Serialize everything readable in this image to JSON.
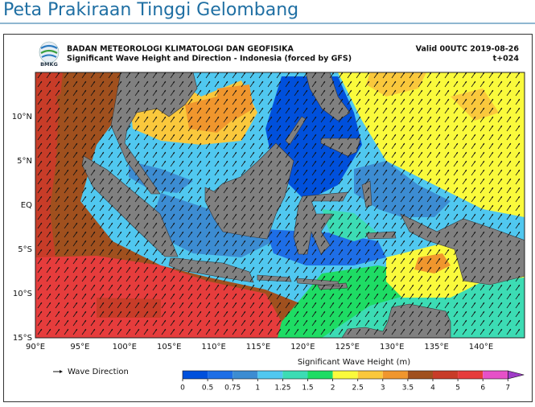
{
  "header": {
    "title": "Peta Prakiraan Tinggi Gelombang"
  },
  "map": {
    "logo_text": "BMKG",
    "agency": "BADAN METEOROLOGI KLIMATOLOGI DAN GEOFISIKA",
    "subtitle": "Significant Wave Height and Direction - Indonesia (forced by GFS)",
    "valid": "Valid 00UTC 2019-08-26",
    "lead": "t+024",
    "lat_labels": [
      "10°N",
      "5°N",
      "EQ",
      "5°S",
      "10°S",
      "15°S"
    ],
    "lon_labels": [
      "90°E",
      "95°E",
      "100°E",
      "105°E",
      "110°E",
      "115°E",
      "120°E",
      "125°E",
      "130°E",
      "135°E",
      "140°E"
    ],
    "legend": {
      "arrow_label": "Wave Direction"
    },
    "colorbar": {
      "title": "Significant Wave Height (m)",
      "ticks": [
        0,
        0.5,
        0.75,
        1,
        1.25,
        1.5,
        2,
        2.5,
        3,
        3.5,
        4,
        5,
        6,
        7
      ],
      "colors": [
        "#0050dc",
        "#1e6ee6",
        "#3c8cd2",
        "#50c8f0",
        "#3cdcb4",
        "#1edc64",
        "#fafa3c",
        "#fac83c",
        "#f0962d",
        "#a0501e",
        "#c83c28",
        "#e63c3c",
        "#e650c8",
        "#a03cc8"
      ]
    }
  }
}
